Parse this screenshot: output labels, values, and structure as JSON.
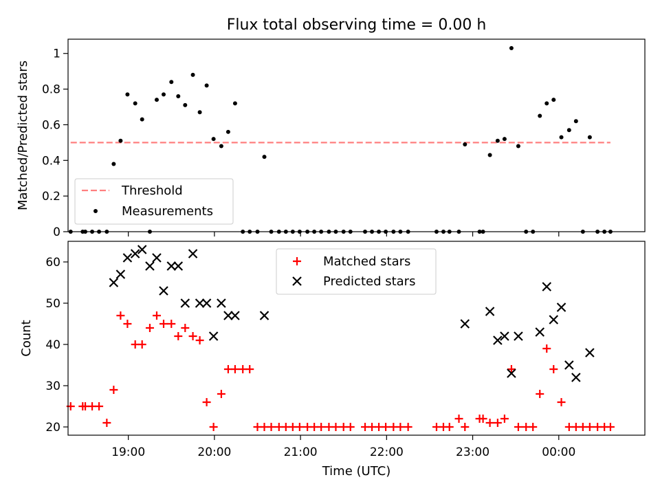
{
  "figure": {
    "title": "Flux total observing time = 0.00 h",
    "xlabel": "Time (UTC)",
    "xticks": [
      {
        "value": 19.0,
        "label": "19:00"
      },
      {
        "value": 20.0,
        "label": "20:00"
      },
      {
        "value": 21.0,
        "label": "21:00"
      },
      {
        "value": 22.0,
        "label": "22:00"
      },
      {
        "value": 23.0,
        "label": "23:00"
      },
      {
        "value": 24.0,
        "label": "00:00"
      }
    ],
    "xlim": [
      18.3,
      25.0
    ]
  },
  "chart_data": [
    {
      "type": "scatter",
      "ylabel": "Matched/Predicted stars",
      "ylim": [
        0.0,
        1.08
      ],
      "yticks": [
        0.0,
        0.2,
        0.4,
        0.6,
        0.8,
        1.0
      ],
      "legend": {
        "placement": "lower-left",
        "entries": [
          "Threshold",
          "Measurements"
        ]
      },
      "threshold": {
        "name": "Threshold",
        "color": "#ff7f7f",
        "y": 0.5,
        "x": [
          18.33,
          24.6
        ]
      },
      "series": [
        {
          "name": "Measurements",
          "color": "#000000",
          "x": [
            18.33,
            18.47,
            18.5,
            18.58,
            18.66,
            18.75,
            18.83,
            18.91,
            18.99,
            19.08,
            19.16,
            19.25,
            19.33,
            19.41,
            19.5,
            19.58,
            19.66,
            19.75,
            19.83,
            19.91,
            19.99,
            20.08,
            20.16,
            20.24,
            20.33,
            20.41,
            20.5,
            20.58,
            20.66,
            20.75,
            20.83,
            20.91,
            20.99,
            21.08,
            21.16,
            21.24,
            21.33,
            21.41,
            21.5,
            21.58,
            21.75,
            21.83,
            21.91,
            21.99,
            22.08,
            22.16,
            22.25,
            22.58,
            22.66,
            22.73,
            22.84,
            22.91,
            23.08,
            23.12,
            23.2,
            23.29,
            23.37,
            23.45,
            23.53,
            23.62,
            23.7,
            23.78,
            23.86,
            23.94,
            24.03,
            24.12,
            24.2,
            24.28,
            24.36,
            24.45,
            24.53,
            24.6
          ],
          "y": [
            0.0,
            0.0,
            0.0,
            0.0,
            0.0,
            0.0,
            0.38,
            0.51,
            0.77,
            0.72,
            0.63,
            0.0,
            0.74,
            0.77,
            0.84,
            0.76,
            0.71,
            0.88,
            0.67,
            0.82,
            0.52,
            0.48,
            0.56,
            0.72,
            0.0,
            0.0,
            0.0,
            0.42,
            0.0,
            0.0,
            0.0,
            0.0,
            0.0,
            0.0,
            0.0,
            0.0,
            0.0,
            0.0,
            0.0,
            0.0,
            0.0,
            0.0,
            0.0,
            0.0,
            0.0,
            0.0,
            0.0,
            0.0,
            0.0,
            0.0,
            0.0,
            0.49,
            0.0,
            0.0,
            0.43,
            0.51,
            0.52,
            1.03,
            0.48,
            0.0,
            0.0,
            0.65,
            0.72,
            0.74,
            0.53,
            0.57,
            0.62,
            0.0,
            0.53,
            0.0,
            0.0,
            0.0
          ]
        }
      ]
    },
    {
      "type": "scatter",
      "ylabel": "Count",
      "ylim": [
        18.0,
        65.0
      ],
      "yticks": [
        20,
        30,
        40,
        50,
        60
      ],
      "legend": {
        "placement": "upper-center",
        "entries": [
          "Matched stars",
          "Predicted stars"
        ]
      },
      "series": [
        {
          "name": "Matched stars",
          "color": "#ff0000",
          "marker": "plus",
          "x": [
            18.33,
            18.47,
            18.5,
            18.58,
            18.66,
            18.75,
            18.83,
            18.91,
            18.99,
            19.08,
            19.16,
            19.25,
            19.33,
            19.41,
            19.5,
            19.58,
            19.66,
            19.75,
            19.83,
            19.91,
            19.99,
            20.08,
            20.16,
            20.24,
            20.33,
            20.41,
            20.5,
            20.58,
            20.66,
            20.75,
            20.83,
            20.91,
            20.99,
            21.08,
            21.16,
            21.24,
            21.33,
            21.41,
            21.5,
            21.58,
            21.75,
            21.83,
            21.91,
            21.99,
            22.08,
            22.16,
            22.25,
            22.58,
            22.66,
            22.73,
            22.84,
            22.91,
            23.08,
            23.12,
            23.2,
            23.29,
            23.37,
            23.45,
            23.53,
            23.62,
            23.7,
            23.78,
            23.86,
            23.94,
            24.03,
            24.12,
            24.2,
            24.28,
            24.36,
            24.45,
            24.53,
            24.6
          ],
          "y": [
            25,
            25,
            25,
            25,
            25,
            21,
            29,
            47,
            45,
            40,
            40,
            44,
            47,
            45,
            45,
            42,
            44,
            42,
            41,
            26,
            20,
            28,
            34,
            34,
            34,
            34,
            20,
            20,
            20,
            20,
            20,
            20,
            20,
            20,
            20,
            20,
            20,
            20,
            20,
            20,
            20,
            20,
            20,
            20,
            20,
            20,
            20,
            20,
            20,
            20,
            22,
            20,
            22,
            22,
            21,
            21,
            22,
            34,
            20,
            20,
            20,
            28,
            39,
            34,
            26,
            20,
            20,
            20,
            20,
            20,
            20,
            20
          ]
        },
        {
          "name": "Predicted stars",
          "color": "#000000",
          "marker": "x",
          "x": [
            18.83,
            18.91,
            18.99,
            19.08,
            19.16,
            19.25,
            19.33,
            19.41,
            19.5,
            19.58,
            19.66,
            19.75,
            19.83,
            19.91,
            19.99,
            20.08,
            20.16,
            20.24,
            20.58,
            22.91,
            23.2,
            23.29,
            23.37,
            23.45,
            23.53,
            23.78,
            23.86,
            23.94,
            24.03,
            24.12,
            24.2,
            24.36
          ],
          "y": [
            55,
            57,
            61,
            62,
            63,
            59,
            61,
            53,
            59,
            59,
            50,
            62,
            50,
            50,
            42,
            50,
            47,
            47,
            47,
            45,
            48,
            41,
            42,
            33,
            42,
            43,
            54,
            46,
            49,
            35,
            32,
            38
          ]
        }
      ]
    }
  ]
}
